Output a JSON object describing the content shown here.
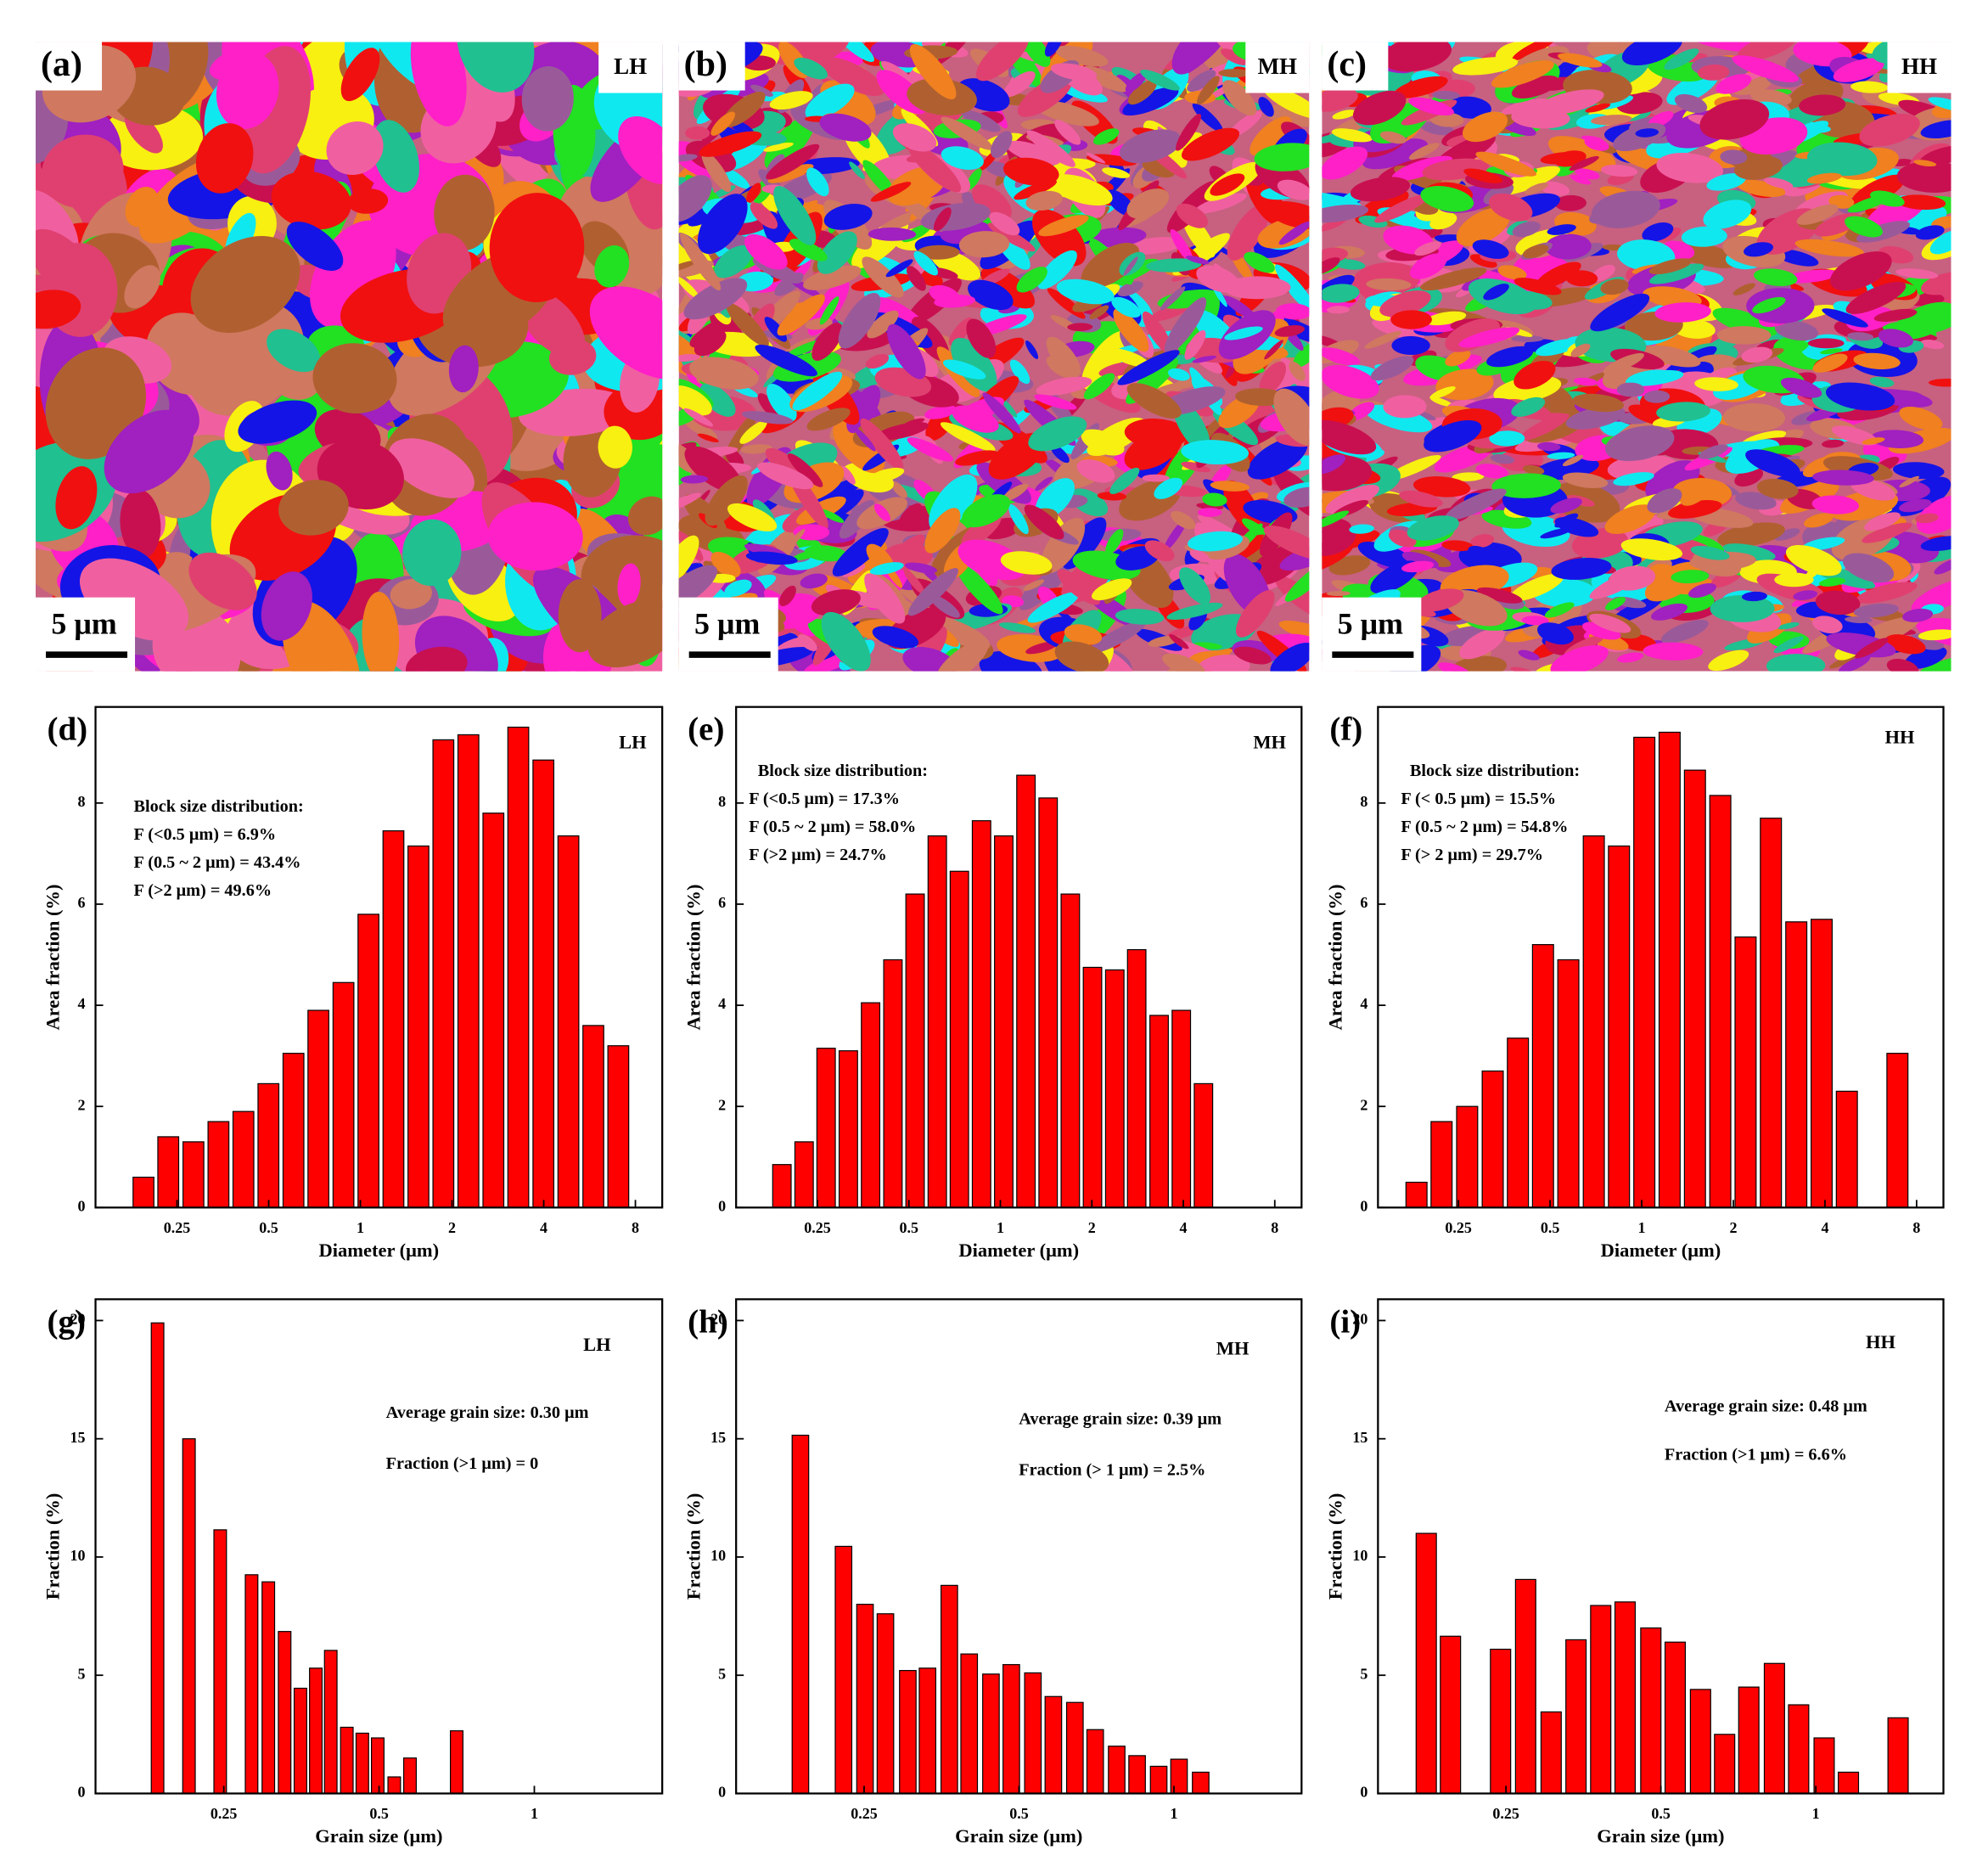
{
  "images": [
    {
      "label": "(a)",
      "sample": "LH",
      "scale_bar": "5 μm"
    },
    {
      "label": "(b)",
      "sample": "MH",
      "scale_bar": "5 μm"
    },
    {
      "label": "(c)",
      "sample": "HH",
      "scale_bar": "5 μm"
    }
  ],
  "chart_data": [
    {
      "type": "bar",
      "panel_label": "(d)",
      "sample": "LH",
      "annotations": [
        "Block size distribution:",
        "F (<0.5 μm) =  6.9%",
        "F (0.5 ~ 2 μm) =  43.4%",
        "F (>2 μm) =  49.6%"
      ],
      "x_label": "Diameter (μm)",
      "y_label": "Area fraction (%)",
      "xscale": "log",
      "color": "#ff0000",
      "x": [
        0.194,
        0.234,
        0.283,
        0.342,
        0.413,
        0.499,
        0.603,
        0.728,
        0.88,
        1.063,
        1.284,
        1.551,
        1.873,
        2.263,
        2.734,
        3.3,
        3.99,
        4.82,
        5.82,
        7.03
      ],
      "values": [
        0.6,
        1.4,
        1.3,
        1.7,
        1.9,
        2.45,
        3.05,
        3.9,
        4.45,
        5.8,
        7.45,
        7.15,
        9.25,
        9.35,
        7.8,
        9.5,
        8.85,
        7.35,
        3.6,
        3.2
      ],
      "xlim": [
        0.135,
        9.8
      ],
      "xticks": [
        0.25,
        0.5,
        1,
        2,
        4,
        8
      ],
      "ylim": [
        0,
        9.9
      ],
      "yticks": [
        0,
        2,
        4,
        6,
        8
      ]
    },
    {
      "type": "bar",
      "panel_label": "(e)",
      "sample": "MH",
      "annotations": [
        "Block size distribution:",
        "F (<0.5 μm) = 17.3%",
        "F (0.5 ~ 2 μm) = 58.0%",
        "F (>2 μm) = 24.7%"
      ],
      "x_label": "Diameter (μm)",
      "y_label": "Area fraction (%)",
      "xscale": "log",
      "color": "#ff0000",
      "x": [
        0.191,
        0.226,
        0.267,
        0.316,
        0.374,
        0.443,
        0.524,
        0.62,
        0.733,
        0.867,
        1.026,
        1.214,
        1.436,
        1.699,
        2.01,
        2.38,
        2.81,
        3.33,
        3.94,
        4.66
      ],
      "values": [
        0.85,
        1.3,
        3.15,
        3.1,
        4.05,
        4.9,
        6.2,
        7.35,
        6.65,
        7.65,
        7.35,
        8.55,
        8.1,
        6.2,
        4.75,
        4.7,
        5.1,
        3.8,
        3.9,
        2.45
      ],
      "xlim": [
        0.135,
        9.8
      ],
      "xticks": [
        0.25,
        0.5,
        1,
        2,
        4,
        8
      ],
      "ylim": [
        0,
        9.9
      ],
      "yticks": [
        0,
        2,
        4,
        6,
        8
      ]
    },
    {
      "type": "bar",
      "panel_label": "(f)",
      "sample": "HH",
      "annotations": [
        "Block size distribution:",
        "F (< 0.5 μm) = 15.5%",
        "F (0.5 ~ 2 μm) = 54.8%",
        "F (> 2 μm) = 29.7%"
      ],
      "x_label": "Diameter (μm)",
      "y_label": "Area fraction (%)",
      "xscale": "log",
      "color": "#ff0000",
      "x": [
        0.182,
        0.22,
        0.267,
        0.324,
        0.392,
        0.474,
        0.574,
        0.696,
        0.842,
        1.02,
        1.235,
        1.496,
        1.812,
        2.194,
        2.657,
        3.22,
        3.9,
        4.72,
        6.92
      ],
      "values": [
        0.5,
        1.7,
        2.0,
        2.7,
        3.35,
        5.2,
        4.9,
        7.35,
        7.15,
        9.3,
        9.4,
        8.65,
        8.15,
        5.35,
        7.7,
        5.65,
        5.7,
        2.3,
        3.05
      ],
      "xlim": [
        0.136,
        9.8
      ],
      "xticks": [
        0.25,
        0.5,
        1,
        2,
        4,
        8
      ],
      "ylim": [
        0,
        9.9
      ],
      "yticks": [
        0,
        2,
        4,
        6,
        8
      ]
    },
    {
      "type": "bar",
      "panel_label": "(g)",
      "sample": "LH",
      "annotations": [
        "Average grain size: 0.30 μm",
        "Fraction (>1 μm) = 0"
      ],
      "x_label": "Grain size (μm)",
      "y_label": "Fraction (%)",
      "xscale": "log",
      "color": "#ff0000",
      "x": [
        0.186,
        0.214,
        0.246,
        0.283,
        0.305,
        0.328,
        0.352,
        0.377,
        0.403,
        0.433,
        0.464,
        0.497,
        0.535,
        0.574,
        0.707
      ],
      "values": [
        19.9,
        15.0,
        11.15,
        9.25,
        8.95,
        6.85,
        4.45,
        5.3,
        6.05,
        2.8,
        2.55,
        2.35,
        0.7,
        1.5,
        2.65
      ],
      "xlim": [
        0.141,
        1.77
      ],
      "xticks": [
        0.25,
        0.5,
        1
      ],
      "ylim": [
        0,
        20.9
      ],
      "yticks": [
        0,
        5,
        10,
        15,
        20
      ]
    },
    {
      "type": "bar",
      "panel_label": "(h)",
      "sample": "MH",
      "annotations": [
        "Average grain size: 0.39 μm",
        "Fraction (> 1 μm) = 2.5%"
      ],
      "x_label": "Grain size (μm)",
      "y_label": "Fraction (%)",
      "xscale": "log",
      "color": "#ff0000",
      "x": [
        0.188,
        0.228,
        0.251,
        0.275,
        0.304,
        0.332,
        0.366,
        0.4,
        0.441,
        0.483,
        0.532,
        0.583,
        0.642,
        0.703,
        0.774,
        0.848,
        0.934,
        1.023,
        1.127
      ],
      "values": [
        15.15,
        10.45,
        8.0,
        7.6,
        5.2,
        5.3,
        8.8,
        5.9,
        5.05,
        5.45,
        5.1,
        4.1,
        3.85,
        2.7,
        2.0,
        1.6,
        1.15,
        1.45,
        0.9
      ],
      "xlim": [
        0.141,
        1.77
      ],
      "xticks": [
        0.25,
        0.5,
        1
      ],
      "ylim": [
        0,
        20.9
      ],
      "yticks": [
        0,
        5,
        10,
        15,
        20
      ]
    },
    {
      "type": "bar",
      "panel_label": "(i)",
      "sample": "HH",
      "annotations": [
        "Average grain size: 0.48 μm",
        "Fraction (>1 μm) = 6.6%"
      ],
      "x_label": "Grain size (μm)",
      "y_label": "Fraction (%)",
      "xscale": "log",
      "color": "#ff0000",
      "x": [
        0.175,
        0.195,
        0.244,
        0.273,
        0.306,
        0.342,
        0.382,
        0.426,
        0.478,
        0.533,
        0.597,
        0.665,
        0.741,
        0.831,
        0.926,
        1.038,
        1.157,
        1.445
      ],
      "values": [
        11.0,
        6.65,
        6.1,
        9.05,
        3.45,
        6.5,
        7.95,
        8.1,
        7.0,
        6.4,
        4.4,
        2.5,
        4.5,
        5.5,
        3.75,
        2.35,
        0.9,
        3.2
      ],
      "xlim": [
        0.141,
        1.77
      ],
      "xticks": [
        0.25,
        0.5,
        1
      ],
      "ylim": [
        0,
        20.9
      ],
      "yticks": [
        0,
        5,
        10,
        15,
        20
      ]
    }
  ]
}
